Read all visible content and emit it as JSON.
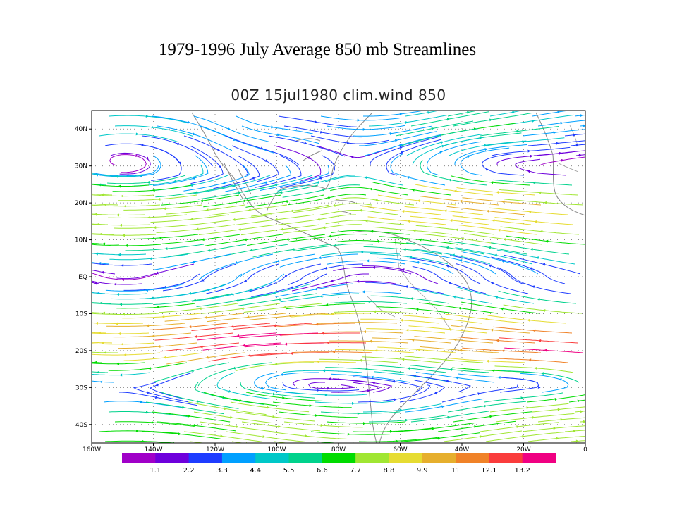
{
  "slide_title": "1979-1996 July Average 850 mb Streamlines",
  "chart_data": {
    "type": "streamline",
    "title": "00Z 15jul1980 clim.wind 850",
    "variable": "clim.wind",
    "level": "850",
    "x_ticks": [
      "160W",
      "140W",
      "120W",
      "100W",
      "80W",
      "60W",
      "40W",
      "20W",
      "0"
    ],
    "y_ticks": [
      "40N",
      "30N",
      "20N",
      "10N",
      "EQ",
      "10S",
      "20S",
      "30S",
      "40S"
    ],
    "xlim": [
      -160,
      0
    ],
    "ylim": [
      -45,
      45
    ],
    "grid": true,
    "colorbar": {
      "colors": [
        "#a000c8",
        "#6e00dc",
        "#1e3cff",
        "#00a0ff",
        "#00c8c8",
        "#00d28c",
        "#00dc00",
        "#a0e632",
        "#e6dc32",
        "#e6af2d",
        "#f08228",
        "#fa3c3c",
        "#f00082"
      ],
      "labels": [
        "1.1",
        "2.2",
        "3.3",
        "4.4",
        "5.5",
        "6.6",
        "7.7",
        "8.8",
        "9.9",
        "11",
        "12.1",
        "13.2"
      ]
    }
  }
}
